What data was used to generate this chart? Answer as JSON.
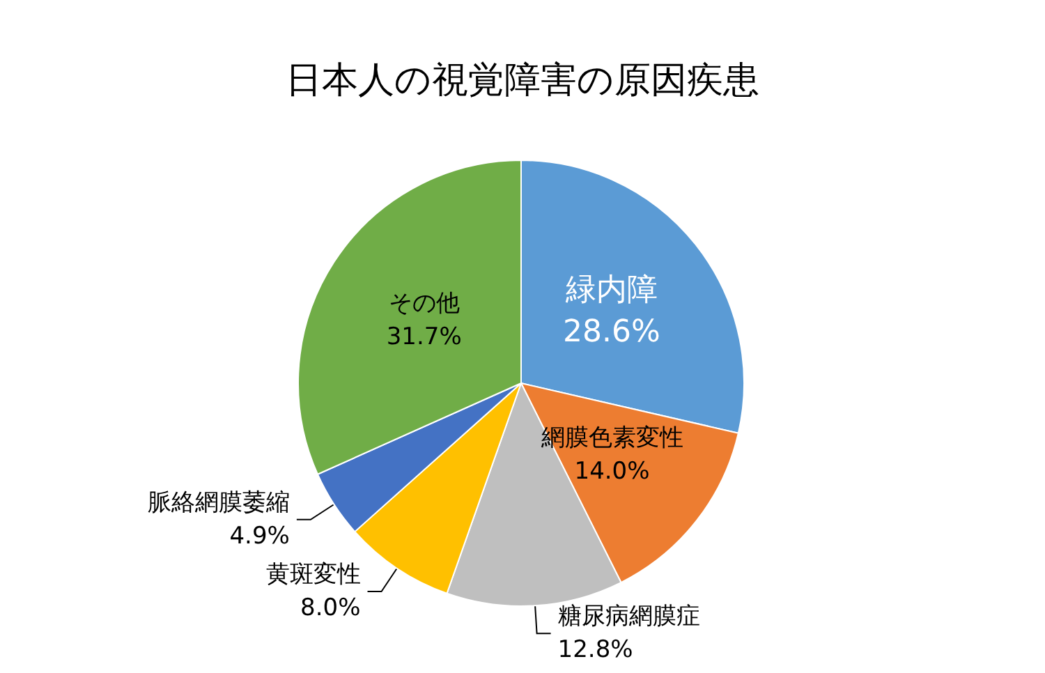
{
  "chart_data": {
    "type": "pie",
    "title": "日本人の視覚障害の原因疾患",
    "categories": [
      "緑内障",
      "網膜色素変性",
      "糖尿病網膜症",
      "黄斑変性",
      "脈絡網膜萎縮",
      "その他"
    ],
    "values": [
      28.6,
      14.0,
      12.8,
      8.0,
      4.9,
      31.7
    ],
    "colors": [
      "#5b9bd5",
      "#ed7d31",
      "#bfbfbf",
      "#ffc000",
      "#4472c4",
      "#70ad47"
    ],
    "value_labels": [
      "28.6%",
      "14.0%",
      "12.8%",
      "8.0%",
      "4.9%",
      "31.7%"
    ],
    "legend": false
  }
}
